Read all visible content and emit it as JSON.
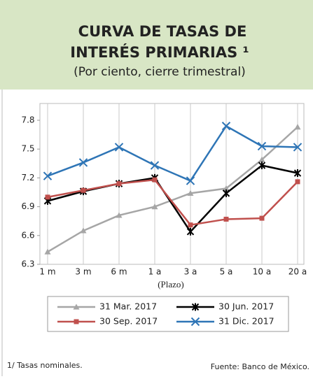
{
  "chart_data": {
    "type": "line",
    "title": [
      "CURVA DE TASAS DE",
      "INTERÉS PRIMARIAS ¹"
    ],
    "subtitle": "(Por ciento, cierre trimestral)",
    "x_label": "(Plazo)",
    "categories": [
      "1 m",
      "3 m",
      "6 m",
      "1 a",
      "3 a",
      "5 a",
      "10 a",
      "20 a"
    ],
    "series": [
      {
        "name": "31 Mar. 2017",
        "color": "#a6a6a6",
        "marker": "triangle",
        "values": [
          6.43,
          6.65,
          6.81,
          6.9,
          7.04,
          7.09,
          7.39,
          7.73
        ]
      },
      {
        "name": "30 Jun. 2017",
        "color": "#000000",
        "marker": "star",
        "values": [
          6.96,
          7.06,
          7.14,
          7.2,
          6.64,
          7.04,
          7.33,
          7.25
        ]
      },
      {
        "name": "30 Sep. 2017",
        "color": "#c0504d",
        "marker": "square",
        "values": [
          7.0,
          7.07,
          7.14,
          7.18,
          6.71,
          6.77,
          6.78,
          7.16
        ]
      },
      {
        "name": "31 Dic. 2017",
        "color": "#2e75b6",
        "marker": "x",
        "values": [
          7.22,
          7.36,
          7.52,
          7.33,
          7.17,
          7.74,
          7.53,
          7.52
        ]
      }
    ],
    "ylim": [
      6.3,
      7.8
    ],
    "yticks": [
      6.3,
      6.6,
      6.9,
      7.2,
      7.5,
      7.8
    ],
    "grid": "x",
    "note": "1/ Tasas nominales.",
    "source": "Fuente:  Banco de México."
  }
}
